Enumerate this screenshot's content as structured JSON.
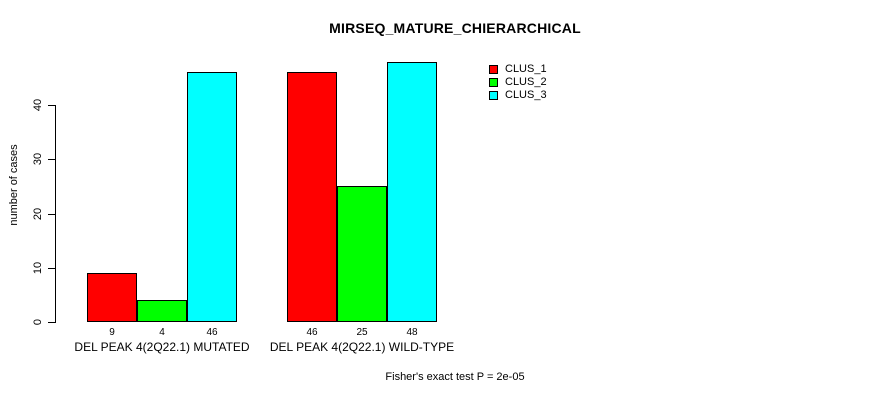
{
  "title": "MIRSEQ_MATURE_CHIERARCHICAL",
  "footnote": "Fisher's exact test P = 2e-05",
  "colors": {
    "background": "#FFFFFF",
    "axis": "#000000",
    "clus_1": "#FF0000",
    "clus_2": "#00FF00",
    "clus_3": "#00FFFF"
  },
  "legend": {
    "position": "top-right",
    "items": [
      {
        "label": "CLUS_1",
        "color": "#FF0000",
        "swatch": "filled-square"
      },
      {
        "label": "CLUS_2",
        "color": "#00FF00",
        "swatch": "filled-square"
      },
      {
        "label": "CLUS_3",
        "color": "#00FFFF",
        "swatch": "filled-square"
      }
    ]
  },
  "chart_data": {
    "type": "bar",
    "grouped": true,
    "title": "MIRSEQ_MATURE_CHIERARCHICAL",
    "xlabel": "",
    "ylabel": "number of cases",
    "categories": [
      "DEL PEAK 4(2Q22.1) MUTATED",
      "DEL PEAK 4(2Q22.1) WILD-TYPE"
    ],
    "series": [
      {
        "name": "CLUS_1",
        "color": "#FF0000",
        "values": [
          9,
          46
        ]
      },
      {
        "name": "CLUS_2",
        "color": "#00FF00",
        "values": [
          4,
          25
        ]
      },
      {
        "name": "CLUS_3",
        "color": "#00FFFF",
        "values": [
          46,
          48
        ]
      }
    ],
    "bar_value_labels_shown": true,
    "ylim": [
      0,
      48
    ],
    "yticks": [
      0,
      10,
      20,
      30,
      40
    ],
    "grid": false,
    "legend_position": "top-right",
    "annotation": "Fisher's exact test P = 2e-05"
  }
}
